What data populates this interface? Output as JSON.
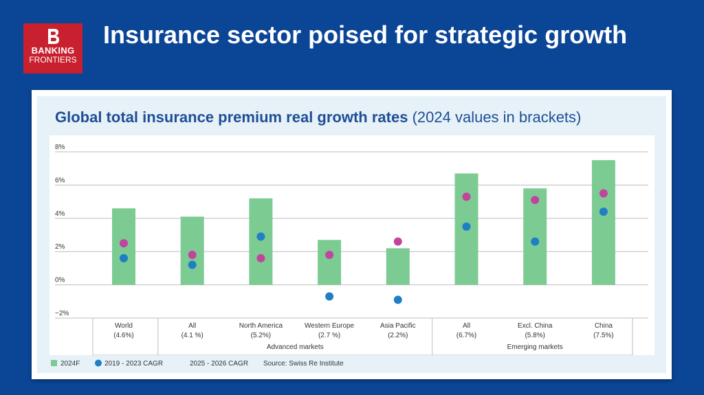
{
  "header": {
    "headline": "Insurance sector poised for strategic growth",
    "logo_line1": "BANKING",
    "logo_line2": "FRONTIERS"
  },
  "chart_title": {
    "bold": "Global total insurance premium real growth rates",
    "rest": " (2024 values in brackets)"
  },
  "colors": {
    "background": "#0b4596",
    "bar": "#7ccb93",
    "cagr_2019_2023": "#1f7fc4",
    "cagr_2025_2026": "#c2449c",
    "title": "#1f4e96"
  },
  "chart_data": {
    "type": "bar",
    "y_ticks": [
      "8%",
      "6%",
      "4%",
      "2%",
      "0%",
      "−2%"
    ],
    "ylim": [
      -2,
      8
    ],
    "categories": [
      {
        "name": "World",
        "bracket": "(4.6%)"
      },
      {
        "name": "All",
        "bracket": "(4.1 %)"
      },
      {
        "name": "North America",
        "bracket": "(5.2%)"
      },
      {
        "name": "Western Europe",
        "bracket": "(2.7 %)"
      },
      {
        "name": "Asia Pacific",
        "bracket": "(2.2%)"
      },
      {
        "name": "All",
        "bracket": "(6.7%)"
      },
      {
        "name": "Excl. China",
        "bracket": "(5.8%)"
      },
      {
        "name": "China",
        "bracket": "(7.5%)"
      }
    ],
    "groups": [
      {
        "label": "Advanced markets",
        "from": 1,
        "to": 4
      },
      {
        "label": "Emerging markets",
        "from": 5,
        "to": 7
      }
    ],
    "series": [
      {
        "name": "2024F",
        "type": "bar",
        "values": [
          4.6,
          4.1,
          5.2,
          2.7,
          2.2,
          6.7,
          5.8,
          7.5
        ]
      },
      {
        "name": "2019 - 2023 CAGR",
        "type": "dot",
        "values": [
          1.6,
          1.2,
          2.9,
          -0.7,
          -0.9,
          3.5,
          2.6,
          4.4
        ]
      },
      {
        "name": "2025 - 2026 CAGR",
        "type": "dot",
        "values": [
          2.5,
          1.8,
          1.6,
          1.8,
          2.6,
          5.3,
          5.1,
          5.5
        ]
      }
    ],
    "source": "Source: Swiss Re Institute"
  }
}
